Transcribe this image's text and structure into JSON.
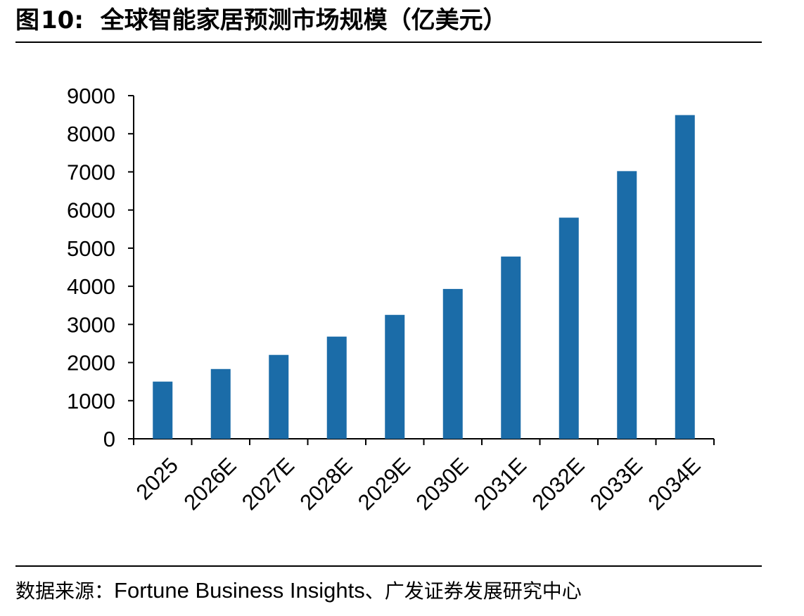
{
  "header": {
    "figure_label": "图",
    "figure_number": "10",
    "separator": ":",
    "title": "全球智能家居预测市场规模（亿美元）"
  },
  "chart_data": {
    "type": "bar",
    "title": "全球智能家居预测市场规模（亿美元）",
    "categories": [
      "2025",
      "2026E",
      "2027E",
      "2028E",
      "2029E",
      "2030E",
      "2031E",
      "2032E",
      "2033E",
      "2034E"
    ],
    "values": [
      1500,
      1830,
      2200,
      2680,
      3250,
      3930,
      4780,
      5800,
      7020,
      8490
    ],
    "ylim": [
      0,
      9000
    ],
    "yticks": [
      0,
      1000,
      2000,
      3000,
      4000,
      5000,
      6000,
      7000,
      8000,
      9000
    ],
    "xlabel": "",
    "ylabel": "",
    "grid": false,
    "legend": "none",
    "bar_color": "#1b6ca8"
  },
  "footer": {
    "source_label": "数据来源：",
    "source_text": "Fortune Business Insights",
    "source_sep": "、",
    "source_org": "广发证券发展研究中心"
  }
}
